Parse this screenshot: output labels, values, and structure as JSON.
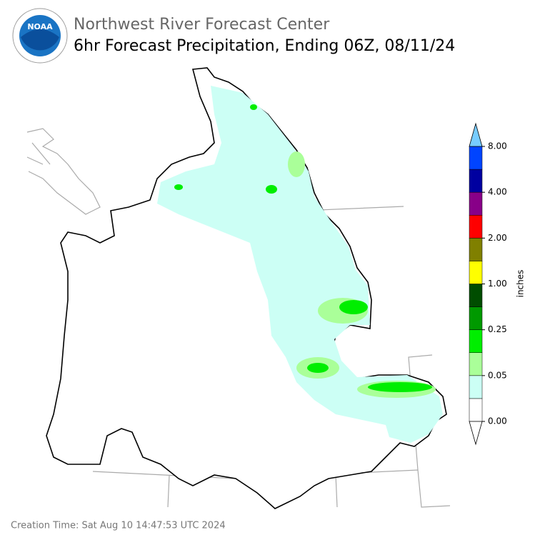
{
  "header": {
    "agency": "Northwest River Forecast Center",
    "title": "6hr Forecast Precipitation, Ending 06Z, 08/11/24"
  },
  "logo": {
    "text": "NOAA"
  },
  "colorbar": {
    "label": "inches",
    "colors": [
      "#ffffff",
      "#ccfff5",
      "#aaff99",
      "#00ee00",
      "#009900",
      "#004d00",
      "#ffff00",
      "#808000",
      "#ff0000",
      "#880088",
      "#0000a0",
      "#0044ff"
    ],
    "over_color": "#77ccff",
    "ticks": [
      {
        "value": 0,
        "label": "0.00"
      },
      {
        "value": 0.05,
        "label": "0.05"
      },
      {
        "value": 0.25,
        "label": "0.25"
      },
      {
        "value": 1,
        "label": "1.00"
      },
      {
        "value": 2,
        "label": "2.00"
      },
      {
        "value": 4,
        "label": "4.00"
      },
      {
        "value": 8,
        "label": "8.00"
      }
    ]
  },
  "footer": {
    "creation_time": "Creation Time: Sat Aug 10 14:47:53 UTC 2024"
  }
}
